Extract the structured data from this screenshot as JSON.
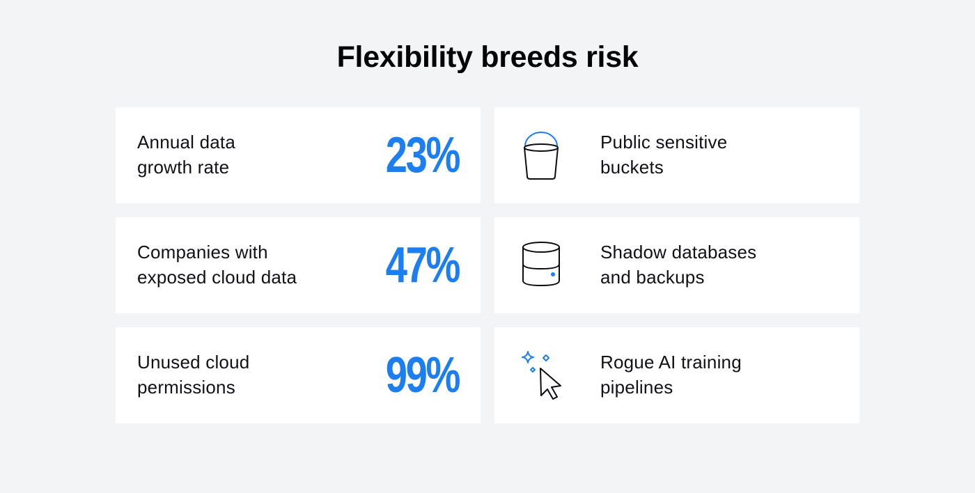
{
  "title": "Flexibility breeds risk",
  "stats": [
    {
      "line1": "Annual data",
      "line2": "growth rate",
      "value": "23%"
    },
    {
      "line1": "Companies with",
      "line2": "exposed cloud data",
      "value": "47%"
    },
    {
      "line1": "Unused cloud",
      "line2": "permissions",
      "value": "99%"
    }
  ],
  "risks": [
    {
      "icon": "bucket-icon",
      "line1": "Public sensitive",
      "line2": "buckets"
    },
    {
      "icon": "database-icon",
      "line1": "Shadow databases",
      "line2": "and backups"
    },
    {
      "icon": "ai-cursor-sparkle-icon",
      "line1": "Rogue AI training",
      "line2": "pipelines"
    }
  ],
  "colors": {
    "background": "#f3f4f6",
    "card": "#ffffff",
    "accent": "#1c7ef0",
    "text": "#111116"
  }
}
